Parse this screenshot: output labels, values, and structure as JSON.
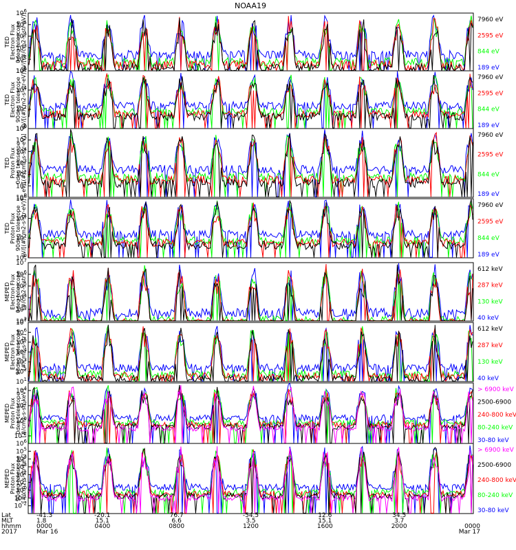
{
  "title": "NOAA19",
  "colors": {
    "black": "#000000",
    "red": "#ff0000",
    "green": "#00ff00",
    "blue": "#0000ff",
    "magenta": "#ff00ff"
  },
  "chart_data": [
    {
      "type": "line",
      "panel": 1,
      "ylabel_lines": [
        "TED",
        "Electron Flux",
        "0deg telescope",
        "eV/[(#/cm2-s-str-eV)]"
      ],
      "y_scale": "log",
      "ylim_exp": [
        1,
        6
      ],
      "tick_exps": [
        1,
        2,
        3,
        4,
        5,
        6
      ],
      "baseline_exp": 2,
      "channels": [
        {
          "name": "7960 eV",
          "color": "#000000"
        },
        {
          "name": "2595 eV",
          "color": "#ff0000"
        },
        {
          "name": "844 eV",
          "color": "#00ff00"
        },
        {
          "name": "189 eV",
          "color": "#0000ff"
        }
      ]
    },
    {
      "type": "line",
      "panel": 2,
      "ylabel_lines": [
        "TED",
        "Electron Flux",
        "90deg telescope",
        "eV/[(#/cm2-s-str-eV)]"
      ],
      "y_scale": "log",
      "ylim_exp": [
        0,
        6
      ],
      "tick_exps": [
        0,
        2,
        4,
        6
      ],
      "baseline_exp": 2,
      "channels": [
        {
          "name": "7960 eV",
          "color": "#000000"
        },
        {
          "name": "2595 eV",
          "color": "#ff0000"
        },
        {
          "name": "844 eV",
          "color": "#00ff00"
        },
        {
          "name": "189 eV",
          "color": "#0000ff"
        }
      ]
    },
    {
      "type": "line",
      "panel": 3,
      "ylabel_lines": [
        "TED",
        "Proton Flux",
        "0deg telescope",
        "eV/[(#/cm2-s-str-eV)]"
      ],
      "y_scale": "log",
      "ylim_exp": [
        0,
        6
      ],
      "tick_exps": [
        0,
        1,
        2,
        3,
        4,
        5,
        6
      ],
      "baseline_exp": 2,
      "channels": [
        {
          "name": "7960 eV",
          "color": "#000000"
        },
        {
          "name": "2595 eV",
          "color": "#ff0000"
        },
        {
          "name": "844 eV",
          "color": "#00ff00"
        },
        {
          "name": "189 eV",
          "color": "#0000ff"
        }
      ]
    },
    {
      "type": "line",
      "panel": 4,
      "ylabel_lines": [
        "TED",
        "Proton Flux",
        "90deg telescope",
        "eV/[(#/cm2-s-str-eV)]"
      ],
      "y_scale": "log",
      "ylim_exp": [
        0,
        6
      ],
      "tick_exps": [
        0,
        2,
        4,
        6
      ],
      "baseline_exp": 2,
      "channels": [
        {
          "name": "7960 eV",
          "color": "#000000"
        },
        {
          "name": "2595 eV",
          "color": "#ff0000"
        },
        {
          "name": "844 eV",
          "color": "#00ff00"
        },
        {
          "name": "189 eV",
          "color": "#0000ff"
        }
      ]
    },
    {
      "type": "line",
      "panel": 5,
      "ylabel_lines": [
        "MEPED",
        "Electron Flux",
        "0deg telescope",
        "[#/cm2-s-str]"
      ],
      "y_scale": "log",
      "ylim_exp": [
        2,
        7
      ],
      "tick_exps": [
        2,
        3,
        4,
        5,
        6,
        7
      ],
      "baseline_exp": 2.3,
      "channels": [
        {
          "name": "612 keV",
          "color": "#000000"
        },
        {
          "name": "287 keV",
          "color": "#ff0000"
        },
        {
          "name": "130 keV",
          "color": "#00ff00"
        },
        {
          "name": "40 keV",
          "color": "#0000ff"
        }
      ]
    },
    {
      "type": "line",
      "panel": 6,
      "ylabel_lines": [
        "MEPED",
        "Electron Flux",
        "90deg telescope",
        "[#/cm2-s-str]"
      ],
      "y_scale": "log",
      "ylim_exp": [
        1,
        7
      ],
      "tick_exps": [
        1,
        2,
        3,
        4,
        5,
        6,
        7
      ],
      "baseline_exp": 2,
      "channels": [
        {
          "name": "612 keV",
          "color": "#000000"
        },
        {
          "name": "287 keV",
          "color": "#ff0000"
        },
        {
          "name": "130 keV",
          "color": "#00ff00"
        },
        {
          "name": "40 keV",
          "color": "#0000ff"
        }
      ]
    },
    {
      "type": "line",
      "panel": 7,
      "ylabel_lines": [
        "MEPED",
        "Proton Flux",
        "0deg telescope",
        "[#/cm2-s-str-keV]"
      ],
      "y_scale": "log",
      "ylim_exp": [
        -3,
        5
      ],
      "tick_exps": [
        -2,
        0,
        2,
        4
      ],
      "baseline_exp": 0,
      "channels": [
        {
          "name": "> 6900 keV",
          "color": "#ff00ff"
        },
        {
          "name": "2500-6900",
          "color": "#000000"
        },
        {
          "name": "240-800 keV",
          "color": "#ff0000"
        },
        {
          "name": "80-240 keV",
          "color": "#00ff00"
        },
        {
          "name": "30-80 keV",
          "color": "#0000ff"
        }
      ]
    },
    {
      "type": "line",
      "panel": 8,
      "ylabel_lines": [
        "MEPED",
        "Proton Flux",
        "90deg telescope",
        "[#/cm2-s-str-keV]"
      ],
      "y_scale": "log",
      "ylim_exp": [
        -3,
        6
      ],
      "tick_exps": [
        -2,
        -1,
        0,
        1,
        2,
        3,
        4,
        5,
        6
      ],
      "baseline_exp": 0,
      "channels": [
        {
          "name": "> 6900 keV",
          "color": "#ff00ff"
        },
        {
          "name": "2500-6900",
          "color": "#000000"
        },
        {
          "name": "240-800 keV",
          "color": "#ff0000"
        },
        {
          "name": "80-240 keV",
          "color": "#00ff00"
        },
        {
          "name": "30-80 keV",
          "color": "#0000ff"
        }
      ]
    }
  ],
  "x_axis": {
    "row_labels": [
      "Lat",
      "MLT",
      "hhmm",
      "2017"
    ],
    "ticks": [
      {
        "lat": "-41.3",
        "mlt": "1.8",
        "hhmm": "0000",
        "date": "Mar 16"
      },
      {
        "lat": "-20.1",
        "mlt": "15.1",
        "hhmm": "0400",
        "date": ""
      },
      {
        "lat": "76.7",
        "mlt": "6.6",
        "hhmm": "0800",
        "date": ""
      },
      {
        "lat": "-54.5",
        "mlt": "3.5",
        "hhmm": "1200",
        "date": ""
      },
      {
        "lat": "12.6",
        "mlt": "15.1",
        "hhmm": "1600",
        "date": ""
      },
      {
        "lat": "34.5",
        "mlt": "3.7",
        "hhmm": "2000",
        "date": ""
      },
      {
        "lat": "",
        "mlt": "",
        "hhmm": "0000",
        "date": "Mar 17"
      }
    ]
  }
}
